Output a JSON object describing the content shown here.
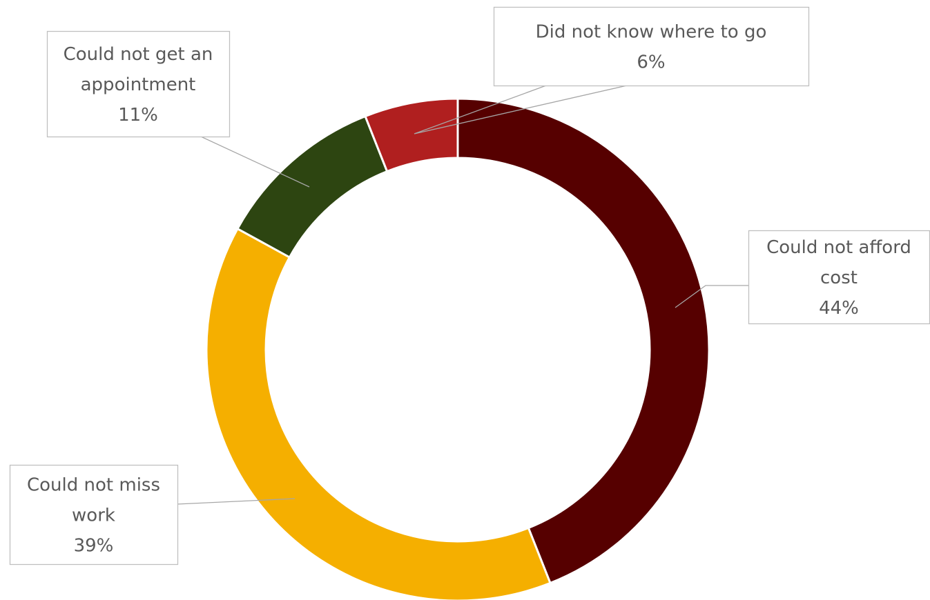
{
  "chart_data": {
    "type": "donut",
    "title": "",
    "start": "12 o'clock, clockwise",
    "slices": [
      {
        "name_lines": [
          "Could not afford",
          "cost"
        ],
        "value": 44,
        "label": "44%",
        "color": "#560000"
      },
      {
        "name_lines": [
          "Could not miss",
          "work"
        ],
        "value": 39,
        "label": "39%",
        "color": "#F5AF00"
      },
      {
        "name_lines": [
          "Could not get an",
          "appointment"
        ],
        "value": 11,
        "label": "11%",
        "color": "#2D4511"
      },
      {
        "name_lines": [
          "Did not know where to go"
        ],
        "value": 6,
        "label": "6%",
        "color": "#B01F1F"
      }
    ],
    "legend": "none",
    "data_labels": "callouts"
  },
  "colors": {
    "callout_border": "#BFBFBF",
    "leader_line": "#A6A6A6",
    "label_text": "#595959",
    "slice_separator": "#FFFFFF"
  }
}
